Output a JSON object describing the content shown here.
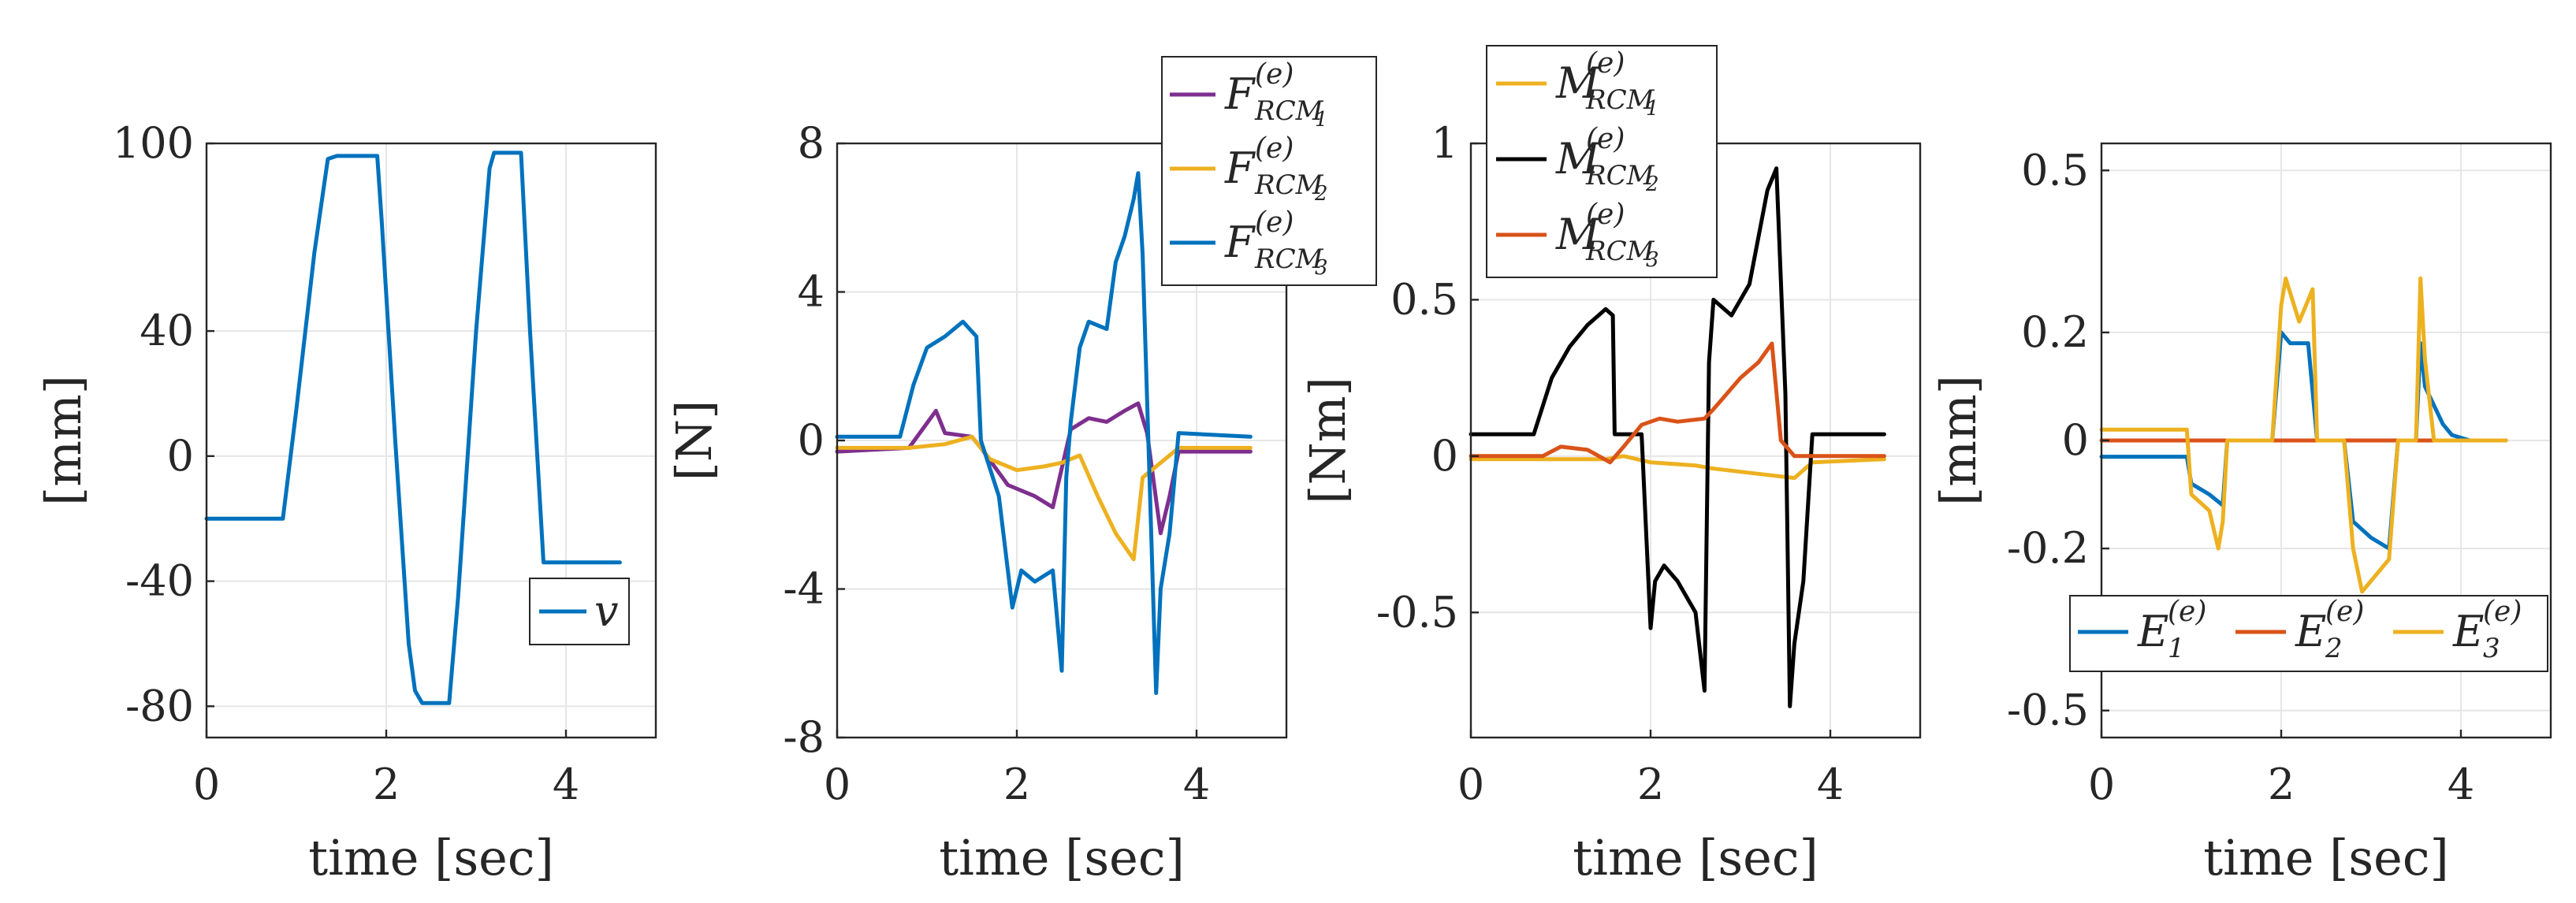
{
  "chart_data": [
    {
      "type": "line",
      "id": "panel1",
      "xlabel": "time [sec]",
      "ylabel": "[mm]",
      "xlim": [
        0,
        5
      ],
      "ylim": [
        -90,
        100
      ],
      "xticks": [
        0,
        2,
        4
      ],
      "xtick_labels": [
        "0",
        "2",
        "4"
      ],
      "yticks": [
        -80,
        -40,
        0,
        40,
        100
      ],
      "ytick_labels": [
        "-80",
        "-40",
        "0",
        "40",
        "100"
      ],
      "grid": true,
      "legend_position": "bottom-right",
      "series": [
        {
          "name": "v",
          "legend_label": "v",
          "color": "#0072BD",
          "x": [
            0.0,
            0.85,
            1.0,
            1.2,
            1.35,
            1.45,
            1.9,
            1.95,
            2.1,
            2.25,
            2.32,
            2.4,
            2.7,
            2.8,
            3.0,
            3.15,
            3.2,
            3.5,
            3.6,
            3.75,
            4.6
          ],
          "y": [
            -20,
            -20,
            15,
            65,
            95,
            96,
            96,
            75,
            5,
            -60,
            -75,
            -79,
            -79,
            -45,
            40,
            92,
            97,
            97,
            40,
            -34,
            -34
          ]
        }
      ]
    },
    {
      "type": "line",
      "id": "panel2",
      "xlabel": "time [sec]",
      "ylabel": "[N]",
      "xlim": [
        0,
        5
      ],
      "ylim": [
        -8,
        8
      ],
      "xticks": [
        0,
        2,
        4
      ],
      "xtick_labels": [
        "0",
        "2",
        "4"
      ],
      "yticks": [
        -8,
        -4,
        0,
        4,
        8
      ],
      "ytick_labels": [
        "-8",
        "-4",
        "0",
        "4",
        "8"
      ],
      "grid": true,
      "legend_position": "top-right (outside)",
      "series": [
        {
          "name": "F_RCM1",
          "legend_base": "F",
          "legend_sup": "(e)",
          "legend_sub": "RCM",
          "legend_subsub": "1",
          "color": "#7E2F8E",
          "x": [
            0,
            0.8,
            0.95,
            1.1,
            1.2,
            1.5,
            1.6,
            1.9,
            2.2,
            2.4,
            2.6,
            2.8,
            3.0,
            3.2,
            3.35,
            3.45,
            3.6,
            3.7,
            3.8,
            4.6
          ],
          "y": [
            -0.3,
            -0.2,
            0.3,
            0.8,
            0.2,
            0.1,
            -0.2,
            -1.2,
            -1.5,
            -1.8,
            0.3,
            0.6,
            0.5,
            0.8,
            1.0,
            0.2,
            -2.5,
            -1.5,
            -0.3,
            -0.3
          ]
        },
        {
          "name": "F_RCM2",
          "legend_base": "F",
          "legend_sup": "(e)",
          "legend_sub": "RCM",
          "legend_subsub": "2",
          "color": "#EDB120",
          "x": [
            0,
            0.8,
            1.2,
            1.5,
            1.7,
            2.0,
            2.3,
            2.5,
            2.7,
            2.9,
            3.1,
            3.3,
            3.4,
            3.5,
            3.7,
            3.8,
            4.6
          ],
          "y": [
            -0.2,
            -0.2,
            -0.1,
            0.1,
            -0.5,
            -0.8,
            -0.7,
            -0.6,
            -0.4,
            -1.5,
            -2.5,
            -3.2,
            -1.0,
            -0.8,
            -0.4,
            -0.2,
            -0.2
          ]
        },
        {
          "name": "F_RCM3",
          "legend_base": "F",
          "legend_sup": "(e)",
          "legend_sub": "RCM",
          "legend_subsub": "3",
          "color": "#0072BD",
          "x": [
            0,
            0.7,
            0.85,
            1.0,
            1.2,
            1.4,
            1.55,
            1.6,
            1.8,
            1.95,
            2.05,
            2.2,
            2.4,
            2.5,
            2.55,
            2.6,
            2.7,
            2.8,
            3.0,
            3.1,
            3.2,
            3.3,
            3.35,
            3.4,
            3.55,
            3.6,
            3.7,
            3.8,
            4.6
          ],
          "y": [
            0.1,
            0.1,
            1.5,
            2.5,
            2.8,
            3.2,
            2.8,
            0.0,
            -1.5,
            -4.5,
            -3.5,
            -3.8,
            -3.5,
            -6.2,
            -1.0,
            0.5,
            2.5,
            3.2,
            3.0,
            4.8,
            5.5,
            6.5,
            7.2,
            5.0,
            -6.8,
            -4.0,
            -2.5,
            0.2,
            0.1
          ]
        }
      ]
    },
    {
      "type": "line",
      "id": "panel3",
      "xlabel": "time [sec]",
      "ylabel": "[Nm]",
      "xlim": [
        0,
        5
      ],
      "ylim": [
        -0.9,
        1.0
      ],
      "xticks": [
        0,
        2,
        4
      ],
      "xtick_labels": [
        "0",
        "2",
        "4"
      ],
      "yticks": [
        -0.5,
        0,
        0.5,
        1
      ],
      "ytick_labels": [
        "-0.5",
        "0",
        "0.5",
        "1"
      ],
      "grid": true,
      "legend_position": "top-left (outside)",
      "series": [
        {
          "name": "M_RCM1",
          "legend_base": "M",
          "legend_sup": "(e)",
          "legend_sub": "RCM",
          "legend_subsub": "1",
          "color": "#EDB120",
          "x": [
            0,
            1.5,
            1.7,
            2.0,
            2.5,
            2.7,
            3.0,
            3.3,
            3.6,
            3.8,
            4.6
          ],
          "y": [
            -0.01,
            -0.01,
            0.0,
            -0.02,
            -0.03,
            -0.04,
            -0.05,
            -0.06,
            -0.07,
            -0.02,
            -0.01
          ]
        },
        {
          "name": "M_RCM2",
          "legend_base": "M",
          "legend_sup": "(e)",
          "legend_sub": "RCM",
          "legend_subsub": "2",
          "color": "#000000",
          "x": [
            0,
            0.7,
            0.9,
            1.1,
            1.3,
            1.5,
            1.58,
            1.6,
            1.9,
            2.0,
            2.05,
            2.15,
            2.3,
            2.5,
            2.6,
            2.65,
            2.7,
            2.9,
            3.1,
            3.3,
            3.4,
            3.5,
            3.55,
            3.6,
            3.7,
            3.8,
            4.6
          ],
          "y": [
            0.07,
            0.07,
            0.25,
            0.35,
            0.42,
            0.47,
            0.45,
            0.07,
            0.07,
            -0.55,
            -0.4,
            -0.35,
            -0.4,
            -0.5,
            -0.75,
            0.3,
            0.5,
            0.45,
            0.55,
            0.85,
            0.92,
            0.2,
            -0.8,
            -0.6,
            -0.4,
            0.07,
            0.07
          ]
        },
        {
          "name": "M_RCM3",
          "legend_base": "M",
          "legend_sup": "(e)",
          "legend_sub": "RCM",
          "legend_subsub": "3",
          "color": "#D95319",
          "x": [
            0,
            0.8,
            1.0,
            1.3,
            1.55,
            1.7,
            1.9,
            2.1,
            2.3,
            2.6,
            2.7,
            2.85,
            3.0,
            3.2,
            3.35,
            3.45,
            3.6,
            4.6
          ],
          "y": [
            0.0,
            0.0,
            0.03,
            0.02,
            -0.02,
            0.03,
            0.1,
            0.12,
            0.11,
            0.12,
            0.15,
            0.2,
            0.25,
            0.3,
            0.36,
            0.05,
            0.0,
            0.0
          ]
        }
      ]
    },
    {
      "type": "line",
      "id": "panel4",
      "xlabel": "time [sec]",
      "ylabel": "[mm]",
      "xlim": [
        0,
        5
      ],
      "ylim": [
        -0.55,
        0.55
      ],
      "xticks": [
        0,
        2,
        4
      ],
      "xtick_labels": [
        "0",
        "2",
        "4"
      ],
      "yticks": [
        -0.5,
        -0.2,
        0,
        0.2,
        0.5
      ],
      "ytick_labels": [
        "-0.5",
        "-0.2",
        "0",
        "0.2",
        "0.5"
      ],
      "grid": true,
      "legend_position": "lower-middle (horizontal)",
      "series": [
        {
          "name": "E1",
          "legend_base": "E",
          "legend_sup": "(e)",
          "legend_sub": "1",
          "color": "#0072BD",
          "x": [
            0,
            0.95,
            1.0,
            1.2,
            1.35,
            1.4,
            1.9,
            2.0,
            2.1,
            2.3,
            2.4,
            2.7,
            2.8,
            3.0,
            3.2,
            3.3,
            3.5,
            3.55,
            3.6,
            3.8,
            3.9,
            4.1,
            4.5
          ],
          "y": [
            -0.03,
            -0.03,
            -0.08,
            -0.1,
            -0.12,
            0.0,
            0.0,
            0.2,
            0.18,
            0.18,
            0.0,
            0.0,
            -0.15,
            -0.18,
            -0.2,
            0.0,
            0.0,
            0.18,
            0.1,
            0.03,
            0.01,
            0.0,
            0.0
          ]
        },
        {
          "name": "E2",
          "legend_base": "E",
          "legend_sup": "(e)",
          "legend_sub": "2",
          "color": "#D95319",
          "x": [
            0,
            1.0,
            2.0,
            3.0,
            4.0,
            4.5
          ],
          "y": [
            0.0,
            0.0,
            0.0,
            0.0,
            0.0,
            0.0
          ]
        },
        {
          "name": "E3",
          "legend_base": "E",
          "legend_sup": "(e)",
          "legend_sub": "3",
          "color": "#EDB120",
          "x": [
            0,
            0.95,
            1.0,
            1.2,
            1.3,
            1.35,
            1.4,
            1.9,
            2.0,
            2.05,
            2.2,
            2.35,
            2.4,
            2.7,
            2.8,
            2.9,
            3.05,
            3.2,
            3.3,
            3.5,
            3.55,
            3.6,
            3.7,
            3.8,
            4.5
          ],
          "y": [
            0.02,
            0.02,
            -0.1,
            -0.13,
            -0.2,
            -0.15,
            0.0,
            0.0,
            0.25,
            0.3,
            0.22,
            0.28,
            0.0,
            0.0,
            -0.2,
            -0.28,
            -0.25,
            -0.22,
            0.0,
            0.0,
            0.3,
            0.15,
            0.0,
            0.0,
            0.0
          ]
        }
      ]
    }
  ]
}
